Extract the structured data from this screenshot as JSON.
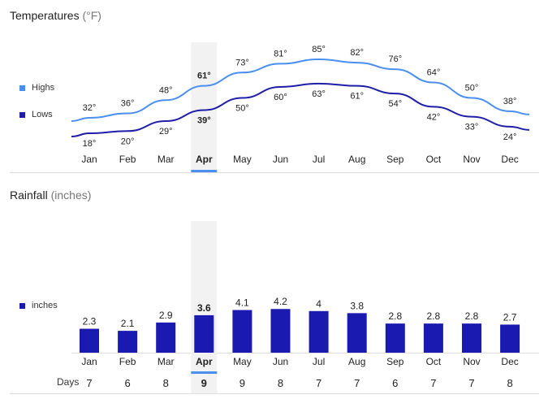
{
  "temperatures": {
    "title": "Temperatures",
    "unit": "(°F)"
  },
  "rainfall": {
    "title": "Rainfall",
    "unit": "(inches)"
  },
  "days_label": "Days",
  "selected_month": "Apr",
  "colors": {
    "highs": "#4a8ff0",
    "lows": "#1f1ea8",
    "bars": "#1a1ab0",
    "highlight_band": "#f2f2f2",
    "selected_underline": "#4a8ff0"
  },
  "chart_data": [
    {
      "type": "line",
      "categories": [
        "Jan",
        "Feb",
        "Mar",
        "Apr",
        "May",
        "Jun",
        "Jul",
        "Aug",
        "Sep",
        "Oct",
        "Nov",
        "Dec"
      ],
      "series": [
        {
          "name": "Highs",
          "values": [
            32,
            36,
            48,
            61,
            73,
            81,
            85,
            82,
            76,
            64,
            50,
            38
          ]
        },
        {
          "name": "Lows",
          "values": [
            18,
            20,
            29,
            39,
            50,
            60,
            63,
            61,
            54,
            42,
            33,
            24
          ]
        }
      ],
      "value_suffix": "°",
      "legend": "left"
    },
    {
      "type": "bar",
      "categories": [
        "Jan",
        "Feb",
        "Mar",
        "Apr",
        "May",
        "Jun",
        "Jul",
        "Aug",
        "Sep",
        "Oct",
        "Nov",
        "Dec"
      ],
      "series": [
        {
          "name": "inches",
          "values": [
            2.3,
            2.1,
            2.9,
            3.6,
            4.1,
            4.2,
            4,
            3.8,
            2.8,
            2.8,
            2.8,
            2.7
          ]
        }
      ],
      "days": [
        7,
        6,
        8,
        9,
        9,
        8,
        7,
        7,
        6,
        7,
        7,
        8
      ],
      "legend": "left"
    }
  ]
}
